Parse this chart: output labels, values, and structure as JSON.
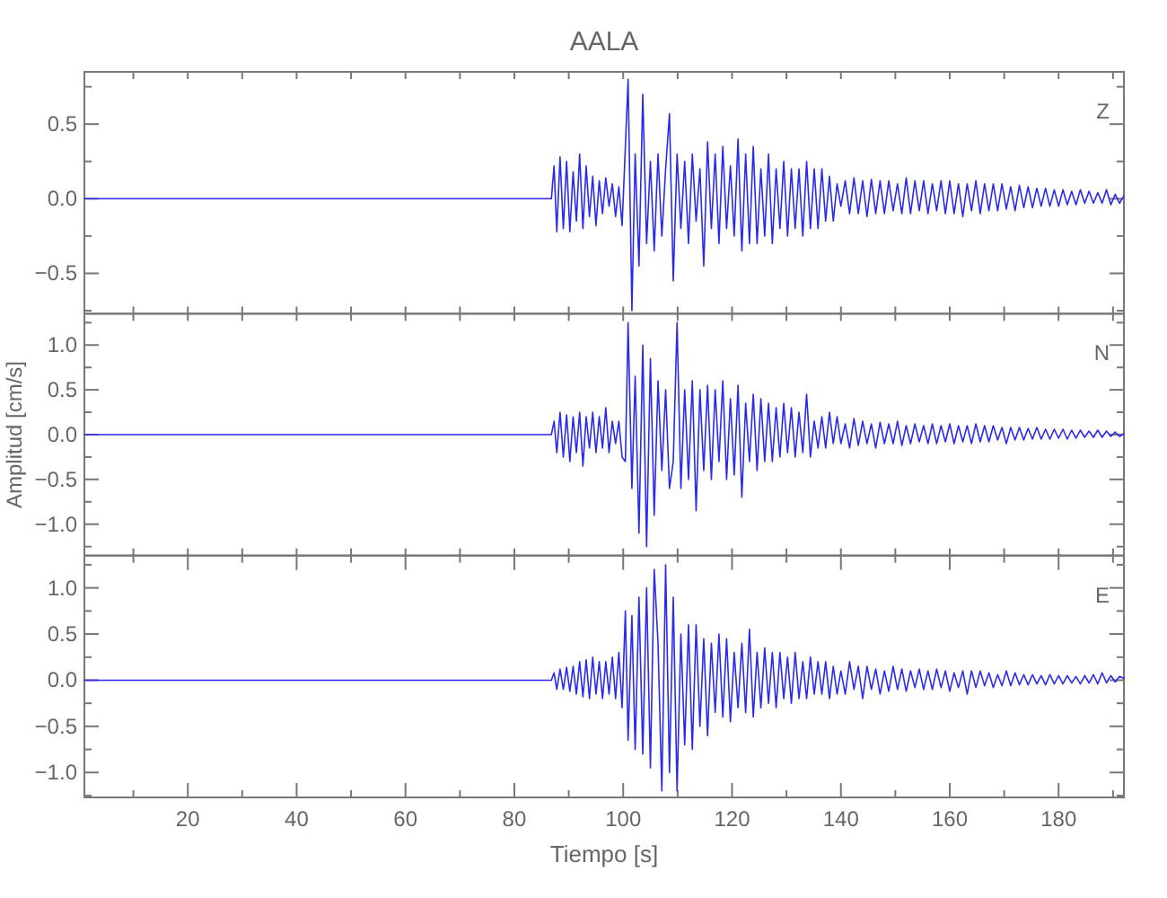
{
  "chart_data": [
    {
      "type": "line",
      "title": "AALA",
      "annotations": [
        "Z"
      ],
      "xlim": [
        1,
        192
      ],
      "ylim": [
        -0.77,
        0.85
      ],
      "tick_labels": "y",
      "xticks": [
        {
          "value": 10,
          "label": null
        },
        {
          "value": 20,
          "label": null
        },
        {
          "value": 30,
          "label": null
        },
        {
          "value": 40,
          "label": null
        },
        {
          "value": 50,
          "label": null
        },
        {
          "value": 60,
          "label": null
        },
        {
          "value": 70,
          "label": null
        },
        {
          "value": 80,
          "label": null
        },
        {
          "value": 90,
          "label": null
        },
        {
          "value": 100,
          "label": null
        },
        {
          "value": 110,
          "label": null
        },
        {
          "value": 120,
          "label": null
        },
        {
          "value": 130,
          "label": null
        },
        {
          "value": 140,
          "label": null
        },
        {
          "value": 150,
          "label": null
        },
        {
          "value": 160,
          "label": null
        },
        {
          "value": 170,
          "label": null
        },
        {
          "value": 180,
          "label": null
        },
        {
          "value": 190,
          "label": null
        }
      ],
      "yticks": [
        {
          "value": -0.75,
          "label": null
        },
        {
          "value": -0.5,
          "label": "−0.5"
        },
        {
          "value": -0.25,
          "label": null
        },
        {
          "value": 0,
          "label": "0.0"
        },
        {
          "value": 0.25,
          "label": null
        },
        {
          "value": 0.5,
          "label": "0.5"
        },
        {
          "value": 0.75,
          "label": null
        }
      ],
      "series": [
        {
          "color": "#2a2aee",
          "x": [
            1,
            86.8,
            87.3,
            87.8,
            88.4,
            89,
            89.6,
            90.2,
            90.8,
            91.4,
            92,
            92.6,
            93.2,
            93.8,
            94.4,
            95,
            95.6,
            96.2,
            96.8,
            97.4,
            98,
            98.6,
            99.2,
            99.8,
            100.4,
            100.9,
            101.6,
            102.2,
            102.9,
            103.6,
            104.3,
            105,
            105.7,
            106.4,
            107.1,
            107.8,
            108.5,
            109.2,
            109.9,
            110.6,
            111.3,
            112,
            112.7,
            113.4,
            114.1,
            114.8,
            115.5,
            116.2,
            116.9,
            117.6,
            118.3,
            119,
            119.7,
            120.4,
            121.1,
            121.8,
            122.5,
            123.2,
            123.9,
            124.6,
            125.3,
            126,
            126.7,
            127.4,
            128.1,
            128.8,
            129.5,
            130.2,
            130.9,
            131.6,
            132.3,
            133,
            133.7,
            134.4,
            135.1,
            135.8,
            136.5,
            137.2,
            137.9,
            138.6,
            139.3,
            140,
            140.8,
            141.6,
            142.4,
            143.2,
            144,
            144.8,
            145.6,
            146.4,
            147.2,
            148,
            148.8,
            149.6,
            150.4,
            151.2,
            152,
            152.8,
            153.6,
            154.4,
            155.2,
            156,
            156.8,
            157.6,
            158.4,
            159.2,
            160,
            160.8,
            161.6,
            162.4,
            163.2,
            164,
            164.8,
            165.6,
            166.4,
            167.2,
            168,
            168.8,
            169.6,
            170.4,
            171.2,
            172,
            172.8,
            173.6,
            174.4,
            175.2,
            176,
            176.8,
            177.6,
            178.4,
            179.2,
            180,
            180.8,
            181.6,
            182.4,
            183.2,
            184,
            184.8,
            185.6,
            186.4,
            187.2,
            188,
            188.8,
            189.6,
            190.4,
            191.2,
            192
          ],
          "values": [
            0,
            0,
            0.22,
            -0.22,
            0.28,
            -0.2,
            0.25,
            -0.22,
            0.18,
            -0.15,
            0.3,
            -0.2,
            0.22,
            -0.12,
            0.15,
            -0.18,
            0.12,
            -0.1,
            0.14,
            -0.05,
            0.1,
            -0.12,
            0.08,
            -0.18,
            0.35,
            0.8,
            -0.75,
            0.3,
            -0.45,
            0.7,
            -0.3,
            0.25,
            -0.35,
            0.3,
            -0.25,
            0.2,
            0.57,
            -0.55,
            0.3,
            -0.2,
            0.25,
            -0.3,
            0.3,
            -0.15,
            0.2,
            -0.45,
            0.38,
            -0.2,
            0.3,
            -0.3,
            0.35,
            -0.2,
            0.22,
            -0.25,
            0.4,
            -0.35,
            0.3,
            -0.3,
            0.35,
            -0.3,
            0.2,
            -0.25,
            0.3,
            -0.3,
            0.2,
            -0.2,
            0.25,
            -0.25,
            0.2,
            -0.2,
            0.2,
            -0.25,
            0.25,
            -0.2,
            0.2,
            -0.2,
            0.2,
            -0.15,
            0.15,
            -0.15,
            0.1,
            -0.05,
            0.12,
            -0.1,
            0.14,
            -0.1,
            0.12,
            -0.12,
            0.13,
            -0.1,
            0.12,
            -0.1,
            0.12,
            -0.08,
            0.1,
            -0.1,
            0.14,
            -0.1,
            0.12,
            -0.08,
            0.12,
            -0.1,
            0.1,
            -0.08,
            0.12,
            -0.1,
            0.12,
            -0.1,
            0.1,
            -0.12,
            0.1,
            -0.08,
            0.12,
            -0.1,
            0.1,
            -0.08,
            0.1,
            -0.08,
            0.1,
            -0.07,
            0.08,
            -0.08,
            0.09,
            -0.06,
            0.08,
            -0.06,
            0.07,
            -0.05,
            0.07,
            -0.05,
            0.06,
            -0.05,
            0.06,
            -0.04,
            0.05,
            -0.04,
            0.06,
            -0.03,
            0.05,
            -0.03,
            0.04,
            -0.03,
            0.06,
            -0.04,
            0.03,
            -0.03,
            0.02
          ]
        }
      ]
    },
    {
      "type": "line",
      "ylabel": "Amplitud [cm/s]",
      "annotations": [
        "N"
      ],
      "xlim": [
        1,
        192
      ],
      "ylim": [
        -1.35,
        1.35
      ],
      "tick_labels": "y",
      "xticks": [
        {
          "value": 10,
          "label": null
        },
        {
          "value": 20,
          "label": null
        },
        {
          "value": 30,
          "label": null
        },
        {
          "value": 40,
          "label": null
        },
        {
          "value": 50,
          "label": null
        },
        {
          "value": 60,
          "label": null
        },
        {
          "value": 70,
          "label": null
        },
        {
          "value": 80,
          "label": null
        },
        {
          "value": 90,
          "label": null
        },
        {
          "value": 100,
          "label": null
        },
        {
          "value": 110,
          "label": null
        },
        {
          "value": 120,
          "label": null
        },
        {
          "value": 130,
          "label": null
        },
        {
          "value": 140,
          "label": null
        },
        {
          "value": 150,
          "label": null
        },
        {
          "value": 160,
          "label": null
        },
        {
          "value": 170,
          "label": null
        },
        {
          "value": 180,
          "label": null
        },
        {
          "value": 190,
          "label": null
        }
      ],
      "yticks": [
        {
          "value": -1.25,
          "label": null
        },
        {
          "value": -1,
          "label": "−1.0"
        },
        {
          "value": -0.75,
          "label": null
        },
        {
          "value": -0.5,
          "label": "−0.5"
        },
        {
          "value": -0.25,
          "label": null
        },
        {
          "value": 0,
          "label": "0.0"
        },
        {
          "value": 0.25,
          "label": null
        },
        {
          "value": 0.5,
          "label": "0.5"
        },
        {
          "value": 0.75,
          "label": null
        },
        {
          "value": 1,
          "label": "1.0"
        },
        {
          "value": 1.25,
          "label": null
        }
      ],
      "series": [
        {
          "color": "#2a2aee",
          "x": [
            1,
            86.8,
            87.3,
            87.8,
            88.4,
            89,
            89.6,
            90.2,
            90.8,
            91.4,
            92,
            92.6,
            93.2,
            93.8,
            94.4,
            95,
            95.6,
            96.2,
            96.8,
            97.4,
            98,
            98.6,
            99.2,
            99.8,
            100.4,
            100.9,
            101.6,
            102.2,
            102.9,
            103.6,
            104.3,
            105,
            105.7,
            106.4,
            107.1,
            107.8,
            108.5,
            109.2,
            109.9,
            110.6,
            111.3,
            112,
            112.7,
            113.4,
            114.1,
            114.8,
            115.5,
            116.2,
            116.9,
            117.6,
            118.3,
            119,
            119.7,
            120.4,
            121.1,
            121.8,
            122.5,
            123.2,
            123.9,
            124.6,
            125.3,
            126,
            126.7,
            127.4,
            128.1,
            128.8,
            129.5,
            130.2,
            130.9,
            131.6,
            132.3,
            133,
            133.7,
            134.4,
            135.1,
            135.8,
            136.5,
            137.2,
            137.9,
            138.6,
            139.3,
            140,
            140.8,
            141.6,
            142.4,
            143.2,
            144,
            144.8,
            145.6,
            146.4,
            147.2,
            148,
            148.8,
            149.6,
            150.4,
            151.2,
            152,
            152.8,
            153.6,
            154.4,
            155.2,
            156,
            156.8,
            157.6,
            158.4,
            159.2,
            160,
            160.8,
            161.6,
            162.4,
            163.2,
            164,
            164.8,
            165.6,
            166.4,
            167.2,
            168,
            168.8,
            169.6,
            170.4,
            171.2,
            172,
            172.8,
            173.6,
            174.4,
            175.2,
            176,
            176.8,
            177.6,
            178.4,
            179.2,
            180,
            180.8,
            181.6,
            182.4,
            183.2,
            184,
            184.8,
            185.6,
            186.4,
            187.2,
            188,
            188.8,
            189.6,
            190.4,
            191.2,
            192
          ],
          "values": [
            0,
            0,
            0.15,
            -0.2,
            0.25,
            -0.25,
            0.22,
            -0.3,
            0.2,
            -0.2,
            0.25,
            -0.35,
            0.2,
            -0.15,
            0.25,
            -0.2,
            0.2,
            -0.15,
            0.3,
            -0.2,
            0.15,
            -0.1,
            0.15,
            -0.25,
            -0.3,
            1.25,
            -0.6,
            0.65,
            -1.1,
            1.0,
            -1.25,
            0.85,
            -0.9,
            0.6,
            -0.4,
            0.5,
            -0.6,
            -0.3,
            1.25,
            -0.6,
            0.5,
            -0.5,
            0.6,
            -0.85,
            0.5,
            -0.4,
            0.55,
            -0.5,
            0.5,
            -0.3,
            0.6,
            -0.5,
            0.4,
            -0.45,
            0.55,
            -0.7,
            0.35,
            -0.3,
            0.45,
            -0.4,
            0.4,
            -0.3,
            0.35,
            -0.3,
            0.3,
            -0.25,
            0.35,
            -0.2,
            0.3,
            -0.25,
            0.25,
            -0.2,
            0.45,
            -0.25,
            0.15,
            -0.15,
            0.2,
            -0.15,
            0.25,
            -0.1,
            0.2,
            -0.1,
            0.12,
            -0.15,
            0.18,
            -0.12,
            0.15,
            -0.1,
            0.12,
            -0.15,
            0.14,
            -0.1,
            0.12,
            -0.1,
            0.15,
            -0.12,
            0.1,
            -0.1,
            0.12,
            -0.08,
            0.1,
            -0.1,
            0.12,
            -0.1,
            0.1,
            -0.08,
            0.12,
            -0.1,
            0.1,
            -0.08,
            0.1,
            -0.1,
            0.12,
            -0.08,
            0.1,
            -0.08,
            0.1,
            -0.06,
            0.08,
            -0.1,
            0.08,
            -0.06,
            0.08,
            -0.06,
            0.07,
            -0.05,
            0.08,
            -0.05,
            0.06,
            -0.05,
            0.06,
            -0.04,
            0.06,
            -0.05,
            0.05,
            -0.04,
            0.05,
            -0.03,
            0.04,
            -0.03,
            0.05,
            -0.03,
            0.04,
            -0.02,
            0.03,
            -0.02,
            0.01
          ]
        }
      ]
    },
    {
      "type": "line",
      "xlabel": "Tiempo [s]",
      "annotations": [
        "E"
      ],
      "xlim": [
        1,
        192
      ],
      "ylim": [
        -1.27,
        1.35
      ],
      "xticks": [
        {
          "value": 10,
          "label": null
        },
        {
          "value": 20,
          "label": "20"
        },
        {
          "value": 30,
          "label": null
        },
        {
          "value": 40,
          "label": "40"
        },
        {
          "value": 50,
          "label": null
        },
        {
          "value": 60,
          "label": "60"
        },
        {
          "value": 70,
          "label": null
        },
        {
          "value": 80,
          "label": "80"
        },
        {
          "value": 90,
          "label": null
        },
        {
          "value": 100,
          "label": "100"
        },
        {
          "value": 110,
          "label": null
        },
        {
          "value": 120,
          "label": "120"
        },
        {
          "value": 130,
          "label": null
        },
        {
          "value": 140,
          "label": "140"
        },
        {
          "value": 150,
          "label": null
        },
        {
          "value": 160,
          "label": "160"
        },
        {
          "value": 170,
          "label": null
        },
        {
          "value": 180,
          "label": "180"
        },
        {
          "value": 190,
          "label": null
        }
      ],
      "yticks": [
        {
          "value": -1.25,
          "label": null
        },
        {
          "value": -1,
          "label": "−1.0"
        },
        {
          "value": -0.75,
          "label": null
        },
        {
          "value": -0.5,
          "label": "−0.5"
        },
        {
          "value": -0.25,
          "label": null
        },
        {
          "value": 0,
          "label": "0.0"
        },
        {
          "value": 0.25,
          "label": null
        },
        {
          "value": 0.5,
          "label": "0.5"
        },
        {
          "value": 0.75,
          "label": null
        },
        {
          "value": 1,
          "label": "1.0"
        },
        {
          "value": 1.25,
          "label": null
        }
      ],
      "series": [
        {
          "color": "#2a2aee",
          "x": [
            1,
            86.8,
            87.3,
            87.8,
            88.4,
            89,
            89.6,
            90.2,
            90.8,
            91.4,
            92,
            92.6,
            93.2,
            93.8,
            94.4,
            95,
            95.6,
            96.2,
            96.8,
            97.4,
            98,
            98.6,
            99.2,
            99.8,
            100.4,
            100.9,
            101.6,
            102.2,
            102.9,
            103.6,
            104.3,
            105,
            105.7,
            106.4,
            107.1,
            107.8,
            108.5,
            109.2,
            109.9,
            110.6,
            111.3,
            112,
            112.7,
            113.4,
            114.1,
            114.8,
            115.5,
            116.2,
            116.9,
            117.6,
            118.3,
            119,
            119.7,
            120.4,
            121.1,
            121.8,
            122.5,
            123.2,
            123.9,
            124.6,
            125.3,
            126,
            126.7,
            127.4,
            128.1,
            128.8,
            129.5,
            130.2,
            130.9,
            131.6,
            132.3,
            133,
            133.7,
            134.4,
            135.1,
            135.8,
            136.5,
            137.2,
            137.9,
            138.6,
            139.3,
            140,
            140.8,
            141.6,
            142.4,
            143.2,
            144,
            144.8,
            145.6,
            146.4,
            147.2,
            148,
            148.8,
            149.6,
            150.4,
            151.2,
            152,
            152.8,
            153.6,
            154.4,
            155.2,
            156,
            156.8,
            157.6,
            158.4,
            159.2,
            160,
            160.8,
            161.6,
            162.4,
            163.2,
            164,
            164.8,
            165.6,
            166.4,
            167.2,
            168,
            168.8,
            169.6,
            170.4,
            171.2,
            172,
            172.8,
            173.6,
            174.4,
            175.2,
            176,
            176.8,
            177.6,
            178.4,
            179.2,
            180,
            180.8,
            181.6,
            182.4,
            183.2,
            184,
            184.8,
            185.6,
            186.4,
            187.2,
            188,
            188.8,
            189.6,
            190.4,
            191.2,
            192
          ],
          "values": [
            0,
            0,
            0.08,
            -0.1,
            0.12,
            -0.1,
            0.14,
            -0.12,
            0.15,
            -0.15,
            0.2,
            -0.18,
            0.22,
            -0.2,
            0.25,
            -0.15,
            0.2,
            -0.2,
            0.2,
            -0.15,
            0.25,
            -0.2,
            0.3,
            -0.3,
            0.75,
            -0.65,
            0.7,
            -0.75,
            0.9,
            -0.8,
            1.0,
            -0.95,
            1.2,
            0.4,
            -1.2,
            1.25,
            -1.0,
            0.9,
            -1.2,
            0.5,
            -0.7,
            0.6,
            -0.75,
            0.6,
            -0.5,
            0.45,
            -0.6,
            0.4,
            -0.35,
            0.5,
            -0.4,
            0.45,
            -0.45,
            0.3,
            -0.3,
            0.4,
            -0.35,
            0.55,
            -0.4,
            0.3,
            -0.3,
            0.35,
            -0.25,
            0.3,
            -0.3,
            0.3,
            -0.2,
            0.25,
            -0.25,
            0.3,
            -0.2,
            0.2,
            -0.2,
            0.25,
            -0.15,
            0.2,
            -0.15,
            0.2,
            -0.2,
            0.15,
            -0.15,
            0.1,
            -0.15,
            0.2,
            -0.1,
            0.15,
            -0.2,
            0.15,
            -0.1,
            0.12,
            -0.15,
            0.1,
            -0.12,
            0.15,
            -0.1,
            0.12,
            -0.12,
            0.1,
            -0.08,
            0.12,
            -0.1,
            0.1,
            -0.1,
            0.12,
            -0.08,
            0.1,
            -0.12,
            0.08,
            -0.08,
            0.1,
            -0.15,
            0.1,
            -0.08,
            0.1,
            -0.06,
            0.08,
            -0.08,
            0.06,
            -0.06,
            0.1,
            -0.06,
            0.08,
            -0.05,
            0.06,
            -0.05,
            0.06,
            -0.04,
            0.05,
            -0.05,
            0.06,
            -0.04,
            0.05,
            -0.04,
            0.05,
            -0.03,
            0.04,
            -0.04,
            0.05,
            -0.03,
            0.06,
            -0.04,
            0.08,
            -0.03,
            0.05,
            -0.02,
            0.04,
            0.02
          ]
        }
      ]
    }
  ]
}
